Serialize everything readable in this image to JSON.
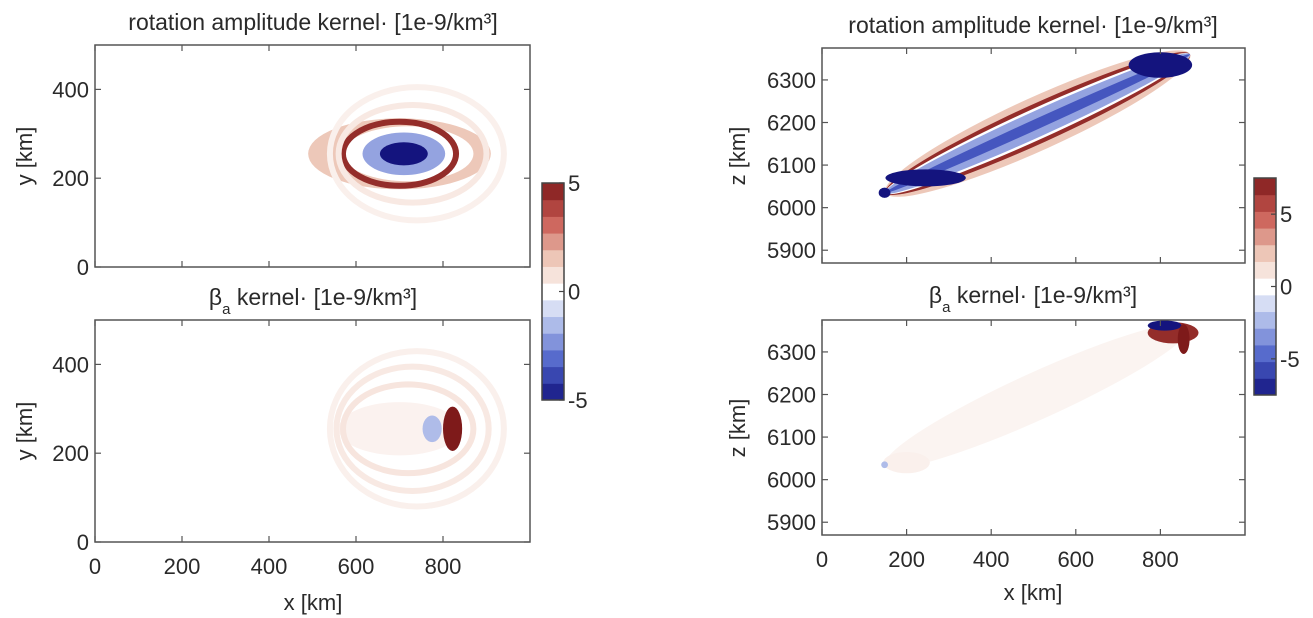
{
  "colors": {
    "dark_blue": "#14147e",
    "blue": "#4b5fc8",
    "light_blue": "#aab8e8",
    "white": "#ffffff",
    "light_red": "#ecc4b4",
    "red": "#c95a52",
    "dark_red": "#7e1a1a",
    "axis": "#555555"
  },
  "chart_data": [
    {
      "type": "heatmap",
      "title": "rotation amplitude kernel· [1e-9/km³]",
      "xlabel": "",
      "ylabel": "y [km]",
      "xlim": [
        0,
        1000
      ],
      "ylim": [
        0,
        500
      ],
      "x_ticks": [
        0,
        200,
        400,
        600,
        800
      ],
      "x_tick_labels": [],
      "y_ticks": [
        0,
        200,
        400
      ],
      "y_tick_labels": [
        "0",
        "200",
        "400"
      ],
      "colorbar": "left",
      "features": [
        {
          "shape": "ellipse",
          "cx": 700,
          "cy": 255,
          "rx": 210,
          "ry": 80,
          "level": 1.5,
          "kind": "fill"
        },
        {
          "shape": "ellipse",
          "cx": 720,
          "cy": 255,
          "rx": 150,
          "ry": 62,
          "level": 0,
          "kind": "fill"
        },
        {
          "shape": "arc",
          "cx": 700,
          "cy": 255,
          "rx": 130,
          "ry": 72,
          "level": 4.5
        },
        {
          "shape": "ellipse",
          "cx": 710,
          "cy": 255,
          "rx": 95,
          "ry": 48,
          "level": -2,
          "kind": "fill"
        },
        {
          "shape": "ellipse",
          "cx": 710,
          "cy": 255,
          "rx": 55,
          "ry": 26,
          "level": -5,
          "kind": "fill"
        },
        {
          "shape": "arc",
          "cx": 730,
          "cy": 255,
          "rx": 170,
          "ry": 110,
          "level": 0.6
        },
        {
          "shape": "arc",
          "cx": 740,
          "cy": 255,
          "rx": 200,
          "ry": 150,
          "level": 0.4
        }
      ]
    },
    {
      "type": "heatmap",
      "title": "βa kernel· [1e-9/km³]",
      "title_symbol": "β",
      "title_subscript": "a",
      "title_rest": " kernel· [1e-9/km³]",
      "xlabel": "x [km]",
      "ylabel": "y [km]",
      "xlim": [
        0,
        1000
      ],
      "ylim": [
        0,
        500
      ],
      "x_ticks": [
        0,
        200,
        400,
        600,
        800
      ],
      "x_tick_labels": [
        "0",
        "200",
        "400",
        "600",
        "800"
      ],
      "y_ticks": [
        0,
        200,
        400
      ],
      "y_tick_labels": [
        "0",
        "200",
        "400"
      ],
      "features": [
        {
          "shape": "ellipse",
          "cx": 700,
          "cy": 255,
          "rx": 140,
          "ry": 60,
          "level": 0.35,
          "kind": "fill"
        },
        {
          "shape": "ellipse",
          "cx": 775,
          "cy": 255,
          "rx": 22,
          "ry": 30,
          "level": -1.5,
          "kind": "fill"
        },
        {
          "shape": "ellipse",
          "cx": 822,
          "cy": 255,
          "rx": 22,
          "ry": 50,
          "level": 5,
          "kind": "fill"
        },
        {
          "shape": "arc",
          "cx": 720,
          "cy": 255,
          "rx": 150,
          "ry": 100,
          "level": 0.7
        },
        {
          "shape": "arc",
          "cx": 730,
          "cy": 255,
          "rx": 175,
          "ry": 140,
          "level": 0.6
        },
        {
          "shape": "arc",
          "cx": 740,
          "cy": 255,
          "rx": 200,
          "ry": 175,
          "level": 0.4
        }
      ]
    },
    {
      "type": "heatmap",
      "title": "rotation amplitude kernel· [1e-9/km³]",
      "xlabel": "",
      "ylabel": "z [km]",
      "xlim": [
        0,
        1000
      ],
      "ylim": [
        5870,
        6375
      ],
      "x_ticks": [
        0,
        200,
        400,
        600,
        800
      ],
      "x_tick_labels": [],
      "y_ticks": [
        5900,
        6000,
        6100,
        6200,
        6300
      ],
      "y_tick_labels": [
        "5900",
        "6000",
        "6100",
        "6200",
        "6300"
      ],
      "features": [
        {
          "shape": "band",
          "x1": 150,
          "z1": 6035,
          "x2": 870,
          "z2": 6360,
          "half": 62,
          "level": 1.5
        },
        {
          "shape": "band",
          "x1": 150,
          "z1": 6035,
          "x2": 870,
          "z2": 6360,
          "half": 46,
          "level": 4.5
        },
        {
          "shape": "band",
          "x1": 150,
          "z1": 6035,
          "x2": 870,
          "z2": 6360,
          "half": 36,
          "level": 0
        },
        {
          "shape": "band",
          "x1": 150,
          "z1": 6035,
          "x2": 870,
          "z2": 6360,
          "half": 30,
          "level": -2
        },
        {
          "shape": "band",
          "x1": 150,
          "z1": 6035,
          "x2": 870,
          "z2": 6360,
          "half": 12,
          "level": -3.5
        },
        {
          "shape": "ellipse",
          "cx": 245,
          "cy": 6070,
          "rx": 95,
          "ry": 20,
          "level": -5,
          "kind": "fill"
        },
        {
          "shape": "ellipse",
          "cx": 800,
          "cy": 6335,
          "rx": 75,
          "ry": 30,
          "level": -5,
          "kind": "fill"
        },
        {
          "shape": "ellipse",
          "cx": 148,
          "cy": 6035,
          "rx": 14,
          "ry": 12,
          "level": -6,
          "kind": "fill"
        }
      ]
    },
    {
      "type": "heatmap",
      "title": "βa kernel· [1e-9/km³]",
      "title_symbol": "β",
      "title_subscript": "a",
      "title_rest": " kernel· [1e-9/km³]",
      "xlabel": "x [km]",
      "ylabel": "z [km]",
      "xlim": [
        0,
        1000
      ],
      "ylim": [
        5870,
        6375
      ],
      "x_ticks": [
        0,
        200,
        400,
        600,
        800
      ],
      "x_tick_labels": [
        "0",
        "200",
        "400",
        "600",
        "800"
      ],
      "y_ticks": [
        5900,
        6000,
        6100,
        6200,
        6300
      ],
      "y_tick_labels": [
        "5900",
        "6000",
        "6100",
        "6200",
        "6300"
      ],
      "colorbar": "right",
      "features": [
        {
          "shape": "band",
          "x1": 150,
          "z1": 6035,
          "x2": 870,
          "z2": 6360,
          "half": 55,
          "level": 0.3
        },
        {
          "shape": "ellipse",
          "cx": 200,
          "cy": 6040,
          "rx": 55,
          "ry": 25,
          "level": 0.4,
          "kind": "fill"
        },
        {
          "shape": "ellipse",
          "cx": 148,
          "cy": 6035,
          "rx": 8,
          "ry": 8,
          "level": -1.5,
          "kind": "fill"
        },
        {
          "shape": "ellipse",
          "cx": 830,
          "cy": 6345,
          "rx": 60,
          "ry": 25,
          "level": 4.5,
          "kind": "fill"
        },
        {
          "shape": "ellipse",
          "cx": 810,
          "cy": 6362,
          "rx": 40,
          "ry": 12,
          "level": -5,
          "kind": "fill"
        },
        {
          "shape": "ellipse",
          "cx": 855,
          "cy": 6330,
          "rx": 14,
          "ry": 35,
          "level": 5,
          "kind": "fill"
        }
      ]
    }
  ],
  "colorbars": [
    {
      "min": -5,
      "max": 5,
      "ticks": [
        -5,
        0,
        5
      ],
      "tick_labels": [
        "-5",
        "0",
        "5"
      ]
    },
    {
      "min": -7.5,
      "max": 7.5,
      "ticks": [
        -5,
        0,
        5
      ],
      "tick_labels": [
        "-5",
        "0",
        "5"
      ]
    }
  ]
}
